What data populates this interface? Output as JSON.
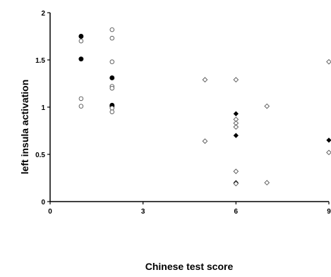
{
  "chart_data": {
    "type": "scatter",
    "xlabel": "Chinese test score",
    "ylabel": "left insula activation",
    "xlim": [
      0,
      9
    ],
    "ylim": [
      0,
      2
    ],
    "x_ticks": [
      "0",
      "3",
      "6",
      "9"
    ],
    "y_ticks": [
      "0",
      "0.5",
      "1",
      "1.5",
      "2"
    ],
    "grid": false,
    "legend": "none",
    "series": [
      {
        "marker": "filled-circle",
        "color": "#000000",
        "points": [
          {
            "x": 1,
            "y": 1.75
          },
          {
            "x": 1,
            "y": 1.51
          },
          {
            "x": 2,
            "y": 1.31
          },
          {
            "x": 2,
            "y": 1.02
          },
          {
            "x": 2,
            "y": 1.01
          }
        ]
      },
      {
        "marker": "open-circle",
        "color": "#000000",
        "points": [
          {
            "x": 1,
            "y": 1.7
          },
          {
            "x": 1,
            "y": 1.09
          },
          {
            "x": 1,
            "y": 1.01
          },
          {
            "x": 2,
            "y": 1.82
          },
          {
            "x": 2,
            "y": 1.73
          },
          {
            "x": 2,
            "y": 1.48
          },
          {
            "x": 2,
            "y": 1.22
          },
          {
            "x": 2,
            "y": 1.2
          },
          {
            "x": 2,
            "y": 0.99
          },
          {
            "x": 2,
            "y": 0.95
          }
        ]
      },
      {
        "marker": "filled-diamond",
        "color": "#000000",
        "points": [
          {
            "x": 6,
            "y": 0.93
          },
          {
            "x": 6,
            "y": 0.7
          },
          {
            "x": 6,
            "y": 0.2
          },
          {
            "x": 9,
            "y": 0.65
          }
        ]
      },
      {
        "marker": "open-diamond",
        "color": "#000000",
        "points": [
          {
            "x": 5,
            "y": 1.29
          },
          {
            "x": 5,
            "y": 0.64
          },
          {
            "x": 6,
            "y": 1.29
          },
          {
            "x": 6,
            "y": 0.87
          },
          {
            "x": 6,
            "y": 0.83
          },
          {
            "x": 6,
            "y": 0.79
          },
          {
            "x": 6,
            "y": 0.32
          },
          {
            "x": 6,
            "y": 0.19
          },
          {
            "x": 7,
            "y": 1.01
          },
          {
            "x": 7,
            "y": 0.2
          },
          {
            "x": 9,
            "y": 1.48
          },
          {
            "x": 9,
            "y": 0.52
          }
        ]
      }
    ]
  }
}
